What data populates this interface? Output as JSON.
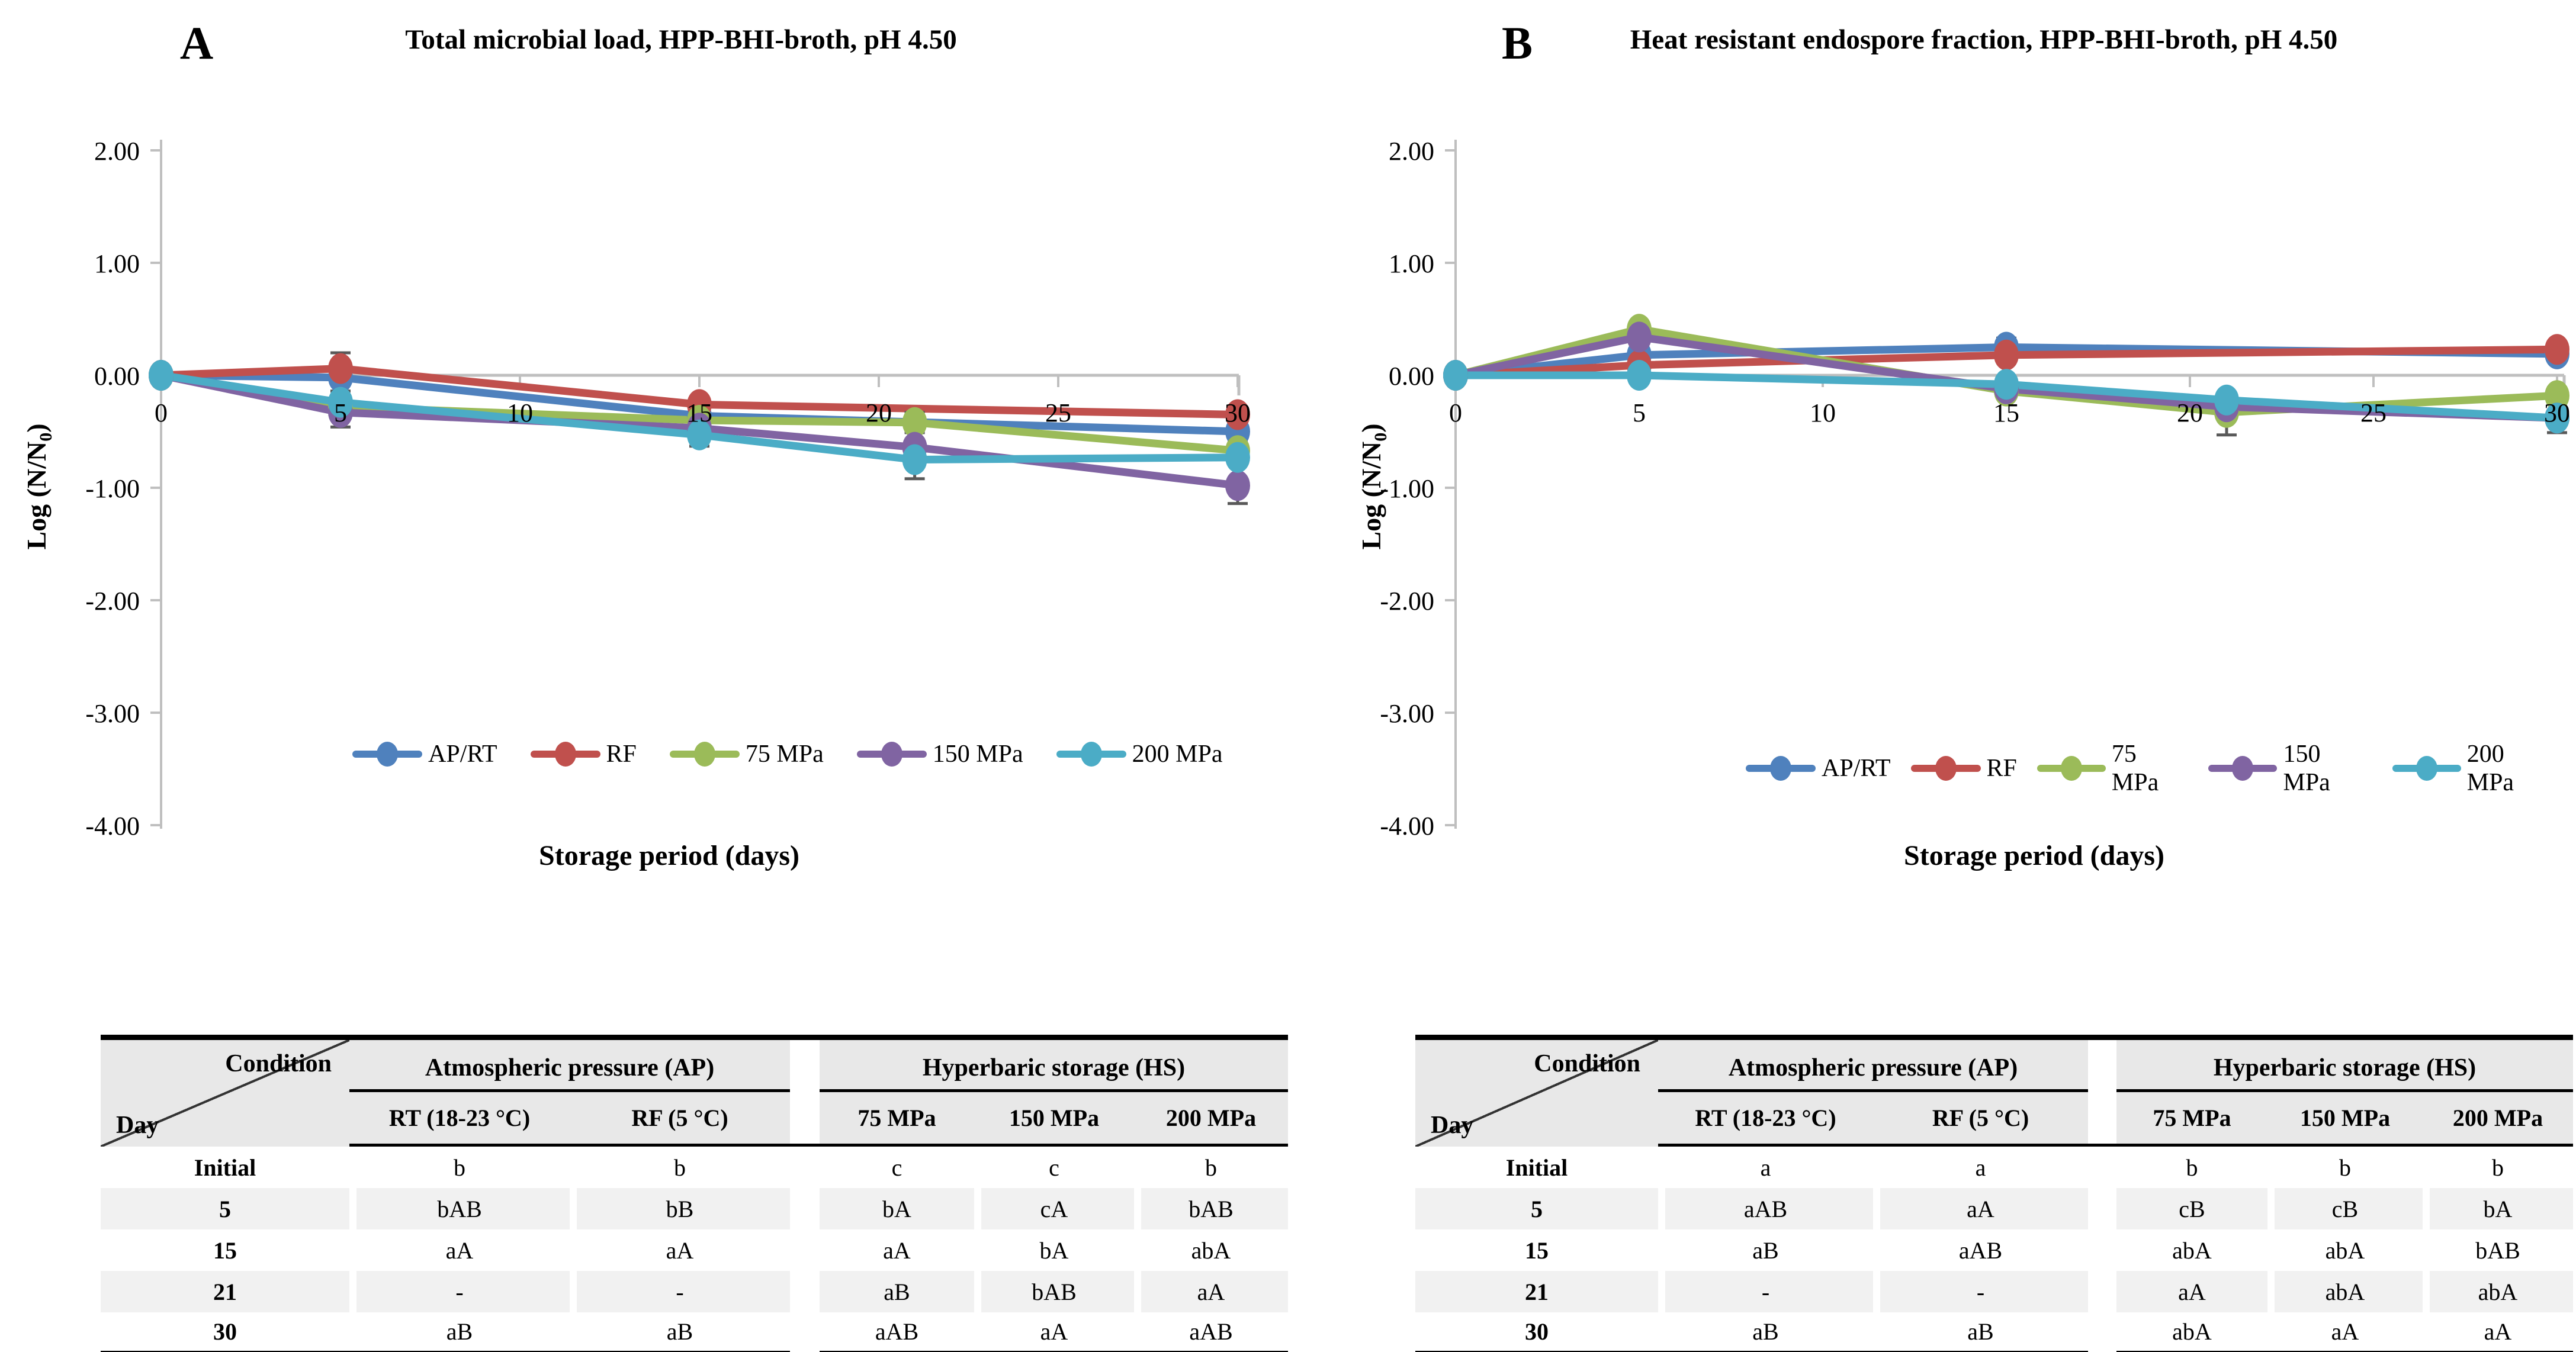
{
  "styles": {
    "axis_color": "#BFBFBF",
    "error_bar_color": "#595959",
    "header_bg": "#E8E8E8",
    "band_bg": "#F1F1F1"
  },
  "chart_data": [
    {
      "type": "line",
      "panel_letter": "A",
      "title": "Total microbial load, HPP-BHI-broth, pH 4.50",
      "xlabel": "Storage period (days)",
      "ylabel": {
        "prefix": "Log (N/N",
        "sub": "0",
        "suffix": ")"
      },
      "xlim": [
        0,
        30
      ],
      "ylim": [
        -4,
        2
      ],
      "grid": false,
      "legend_position": "bottom",
      "x_tick_values": [
        0,
        5,
        10,
        15,
        20,
        25,
        30
      ],
      "x_ticks": [
        "0",
        "5",
        "10",
        "15",
        "20",
        "25",
        "30"
      ],
      "y_ticks": [
        {
          "value": 2,
          "label": "2.00"
        },
        {
          "value": 1,
          "label": "1.00"
        },
        {
          "value": 0,
          "label": "0.00"
        },
        {
          "value": -1,
          "label": "-1.00"
        },
        {
          "value": -2,
          "label": "-2.00"
        },
        {
          "value": -3,
          "label": "-3.00"
        },
        {
          "value": -4,
          "label": "-4.00"
        }
      ],
      "days": [
        0,
        5,
        15,
        21,
        30
      ],
      "series": [
        {
          "name": "AP/RT",
          "color": "#4F81BD",
          "values": [
            0.0,
            -0.02,
            -0.36,
            null,
            -0.5
          ]
        },
        {
          "name": "RF",
          "color": "#C0504D",
          "values": [
            0.0,
            0.06,
            -0.26,
            null,
            -0.35
          ]
        },
        {
          "name": "75 MPa",
          "color": "#9BBB59",
          "values": [
            0.0,
            -0.28,
            -0.4,
            -0.42,
            -0.67
          ]
        },
        {
          "name": "150 MPa",
          "color": "#8064A2",
          "values": [
            0.0,
            -0.33,
            -0.47,
            -0.64,
            -0.98
          ]
        },
        {
          "name": "200 MPa",
          "color": "#4BACC6",
          "values": [
            0.0,
            -0.24,
            -0.53,
            -0.75,
            -0.73
          ]
        }
      ],
      "error_bars": [
        {
          "series": 1,
          "day": 5,
          "plus": 0.14,
          "minus": 0.14
        },
        {
          "series": 0,
          "day": 5,
          "plus": 0.1,
          "minus": 0.12
        },
        {
          "series": 3,
          "day": 5,
          "plus": 0.12,
          "minus": 0.13
        },
        {
          "series": 1,
          "day": 15,
          "plus": 0.05,
          "minus": 0.05
        },
        {
          "series": 4,
          "day": 15,
          "plus": 0.05,
          "minus": 0.1
        },
        {
          "series": 2,
          "day": 21,
          "plus": 0.09,
          "minus": 0.09
        },
        {
          "series": 3,
          "day": 21,
          "plus": 0.07,
          "minus": 0.05
        },
        {
          "series": 4,
          "day": 21,
          "plus": 0.05,
          "minus": 0.17
        },
        {
          "series": 0,
          "day": 30,
          "plus": 0.05,
          "minus": 0.09
        },
        {
          "series": 3,
          "day": 30,
          "plus": 0.05,
          "minus": 0.16
        },
        {
          "series": 4,
          "day": 30,
          "plus": 0.06,
          "minus": 0.06
        }
      ]
    },
    {
      "type": "line",
      "panel_letter": "B",
      "title": "Heat resistant endospore fraction, HPP-BHI-broth, pH 4.50",
      "xlabel": "Storage period (days)",
      "ylabel": {
        "prefix": "Log (N/N",
        "sub": "0",
        "suffix": ")"
      },
      "xlim": [
        0,
        30
      ],
      "ylim": [
        -4,
        2
      ],
      "grid": false,
      "legend_position": "bottom",
      "x_tick_values": [
        0,
        5,
        10,
        15,
        20,
        25,
        30
      ],
      "x_ticks": [
        "0",
        "5",
        "10",
        "15",
        "20",
        "25",
        "30"
      ],
      "y_ticks": [
        {
          "value": 2,
          "label": "2.00"
        },
        {
          "value": 1,
          "label": "1.00"
        },
        {
          "value": 0,
          "label": "0.00"
        },
        {
          "value": -1,
          "label": "-1.00"
        },
        {
          "value": -2,
          "label": "-2.00"
        },
        {
          "value": -3,
          "label": "-3.00"
        },
        {
          "value": -4,
          "label": "-4.00"
        }
      ],
      "days": [
        0,
        5,
        15,
        21,
        30
      ],
      "series": [
        {
          "name": "AP/RT",
          "color": "#4F81BD",
          "values": [
            0.0,
            0.18,
            0.25,
            null,
            0.19
          ]
        },
        {
          "name": "RF",
          "color": "#C0504D",
          "values": [
            0.0,
            0.09,
            0.18,
            null,
            0.23
          ]
        },
        {
          "name": "75 MPa",
          "color": "#9BBB59",
          "values": [
            0.0,
            0.41,
            -0.14,
            -0.33,
            -0.18
          ]
        },
        {
          "name": "150 MPa",
          "color": "#8064A2",
          "values": [
            0.0,
            0.34,
            -0.12,
            -0.28,
            -0.38
          ]
        },
        {
          "name": "200 MPa",
          "color": "#4BACC6",
          "values": [
            0.0,
            0.0,
            -0.08,
            -0.22,
            -0.38
          ]
        }
      ],
      "error_bars": [
        {
          "series": 0,
          "day": 15,
          "plus": 0.08,
          "minus": 0.05
        },
        {
          "series": 1,
          "day": 15,
          "plus": 0.04,
          "minus": 0.04
        },
        {
          "series": 2,
          "day": 21,
          "plus": 0.05,
          "minus": 0.2
        },
        {
          "series": 4,
          "day": 21,
          "plus": 0.06,
          "minus": 0.04
        },
        {
          "series": 2,
          "day": 30,
          "plus": 0.07,
          "minus": 0.07
        },
        {
          "series": 4,
          "day": 30,
          "plus": 0.05,
          "minus": 0.13
        },
        {
          "series": 1,
          "day": 30,
          "plus": 0.04,
          "minus": 0.04
        }
      ]
    }
  ],
  "tables": {
    "a": {
      "condition_label": "Condition",
      "day_label": "Day",
      "group_ap": "Atmospheric pressure (AP)",
      "group_hs": "Hyperbaric storage (HS)",
      "col_rt": "RT (18-23 °C)",
      "col_rf": "RF (5 °C)",
      "col_75": "75 MPa",
      "col_150": "150 MPa",
      "col_200": "200 MPa",
      "rows": [
        {
          "day": "Initial",
          "rt": "b",
          "rf": "b",
          "p75": "c",
          "p150": "c",
          "p200": "b"
        },
        {
          "day": "5",
          "rt": "bAB",
          "rf": "bB",
          "p75": "bA",
          "p150": "cA",
          "p200": "bAB"
        },
        {
          "day": "15",
          "rt": "aA",
          "rf": "aA",
          "p75": "aA",
          "p150": "bA",
          "p200": "abA"
        },
        {
          "day": "21",
          "rt": "-",
          "rf": "-",
          "p75": "aB",
          "p150": "bAB",
          "p200": "aA"
        },
        {
          "day": "30",
          "rt": "aB",
          "rf": "aB",
          "p75": "aAB",
          "p150": "aA",
          "p200": "aAB"
        }
      ]
    },
    "b": {
      "condition_label": "Condition",
      "day_label": "Day",
      "group_ap": "Atmospheric pressure (AP)",
      "group_hs": "Hyperbaric storage (HS)",
      "col_rt": "RT (18-23 °C)",
      "col_rf": "RF (5 °C)",
      "col_75": "75 MPa",
      "col_150": "150 MPa",
      "col_200": "200 MPa",
      "rows": [
        {
          "day": "Initial",
          "rt": "a",
          "rf": "a",
          "p75": "b",
          "p150": "b",
          "p200": "b"
        },
        {
          "day": "5",
          "rt": "aAB",
          "rf": "aA",
          "p75": "cB",
          "p150": "cB",
          "p200": "bA"
        },
        {
          "day": "15",
          "rt": "aB",
          "rf": "aAB",
          "p75": "abA",
          "p150": "abA",
          "p200": "bAB"
        },
        {
          "day": "21",
          "rt": "-",
          "rf": "-",
          "p75": "aA",
          "p150": "abA",
          "p200": "abA"
        },
        {
          "day": "30",
          "rt": "aB",
          "rf": "aB",
          "p75": "abA",
          "p150": "aA",
          "p200": "aA"
        }
      ]
    }
  }
}
